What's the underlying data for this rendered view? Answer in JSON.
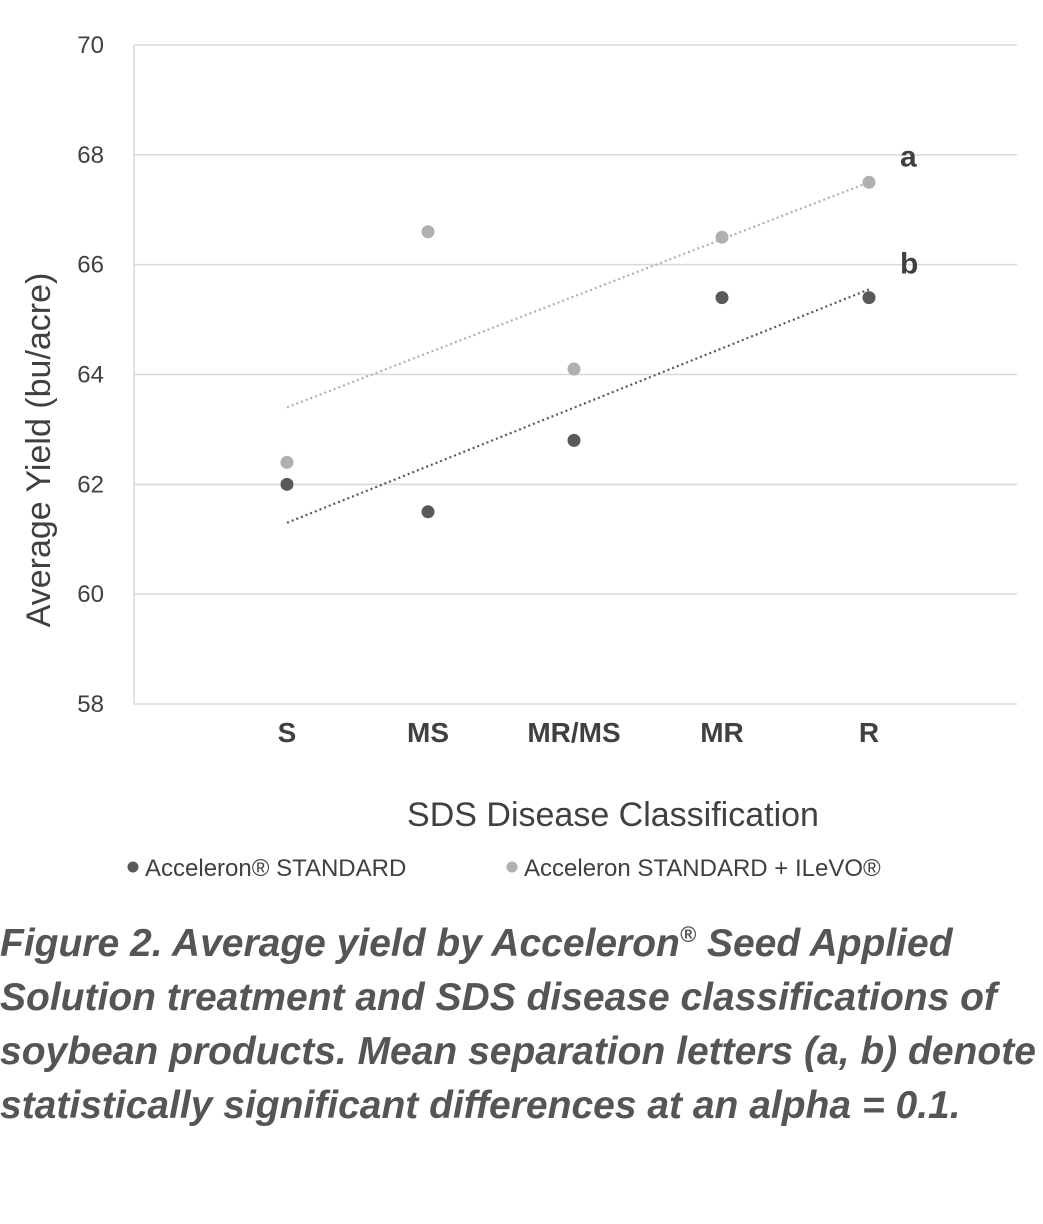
{
  "chart_data": {
    "type": "scatter",
    "categories": [
      "S",
      "MS",
      "MR/MS",
      "MR",
      "R"
    ],
    "xlabel": "SDS Disease Classification",
    "ylabel": "Average Yield (bu/acre)",
    "ylim": [
      58,
      70
    ],
    "yticks": [
      58,
      60,
      62,
      64,
      66,
      68,
      70
    ],
    "grid": "horizontal",
    "legend_position": "bottom",
    "series": [
      {
        "name": "Acceleron® STANDARD",
        "values": [
          62.0,
          61.5,
          62.8,
          65.4,
          65.4
        ],
        "trendline": [
          61.3,
          65.55
        ],
        "significance_letter": "b",
        "color": "#595959"
      },
      {
        "name": "Acceleron STANDARD + ILeVO®",
        "values": [
          62.4,
          66.6,
          64.1,
          66.5,
          67.5
        ],
        "trendline": [
          63.4,
          67.5
        ],
        "significance_letter": "a",
        "color": "#b0b0b0"
      }
    ]
  },
  "caption": {
    "part1": "Figure 2. Average yield by Acceleron",
    "registered": "®",
    "part2": " Seed Applied Solution treatment and SDS disease classifications of soybean products. Mean separation letters (a, b) denote statistically significant differences at an alpha = 0.1."
  }
}
